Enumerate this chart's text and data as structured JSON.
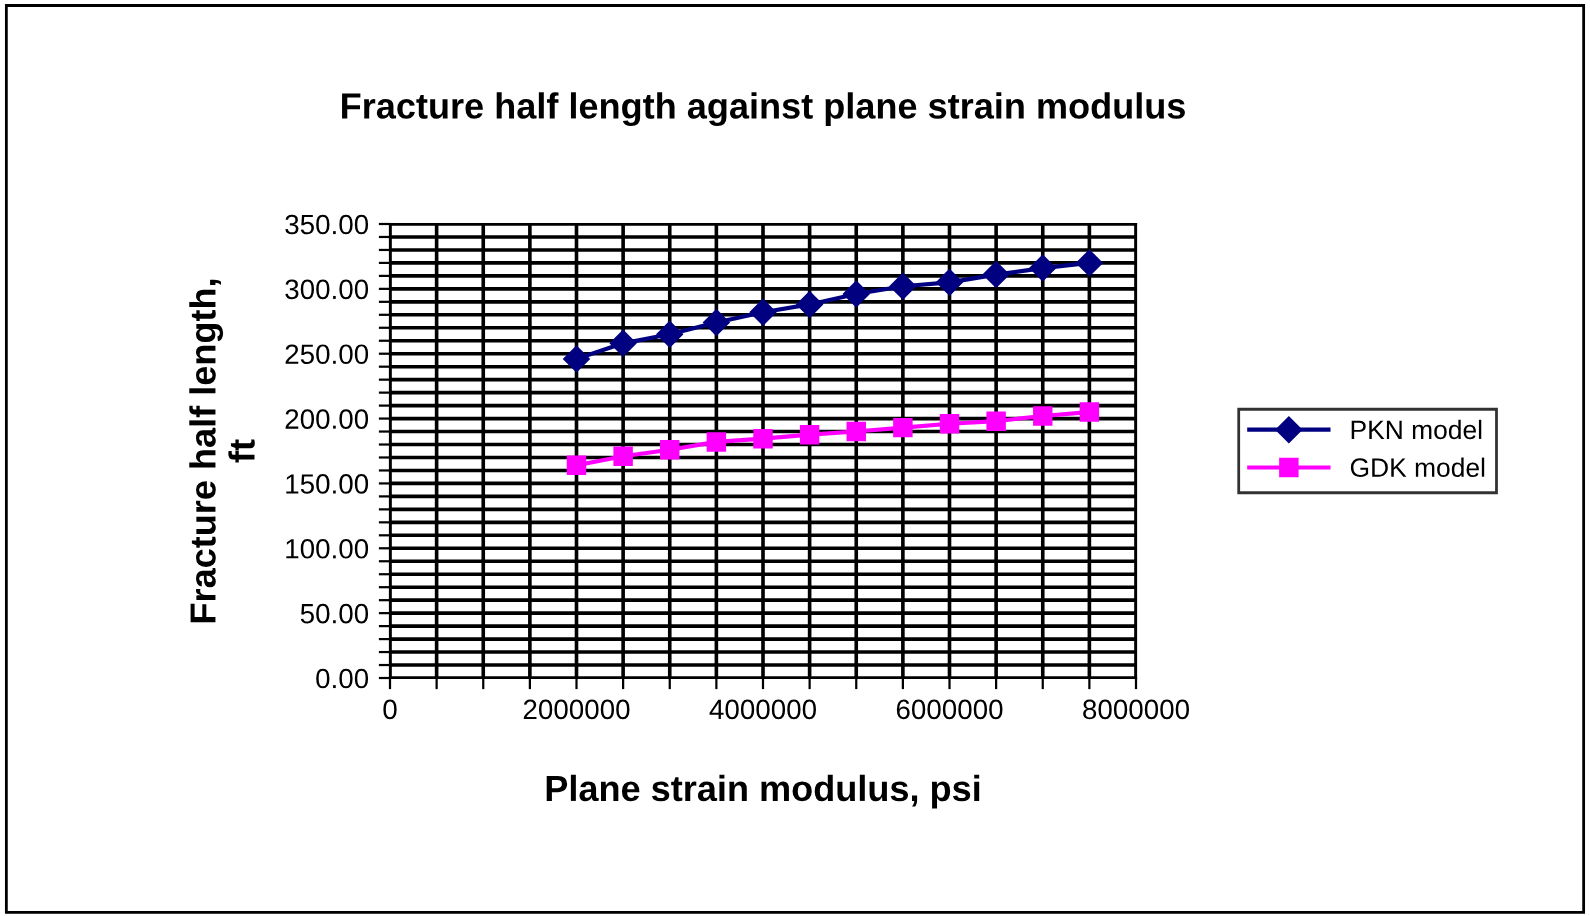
{
  "chart_data": {
    "type": "line",
    "title": "Fracture half length against plane strain modulus",
    "xlabel": "Plane strain modulus, psi",
    "ylabel": "Fracture half length,\nft",
    "x": [
      2000000,
      2500000,
      3000000,
      3500000,
      4000000,
      4500000,
      5000000,
      5500000,
      6000000,
      6500000,
      7000000,
      7500000
    ],
    "series": [
      {
        "name": "PKN model",
        "color": "#000080",
        "marker": "diamond",
        "values": [
          246,
          258,
          265,
          274,
          282,
          288,
          296,
          302,
          305,
          311,
          316,
          320
        ]
      },
      {
        "name": "GDK model",
        "color": "#ff00ff",
        "marker": "square",
        "values": [
          164,
          171,
          176,
          182,
          184.5,
          187.6,
          190,
          193,
          196,
          198,
          202,
          205
        ]
      }
    ],
    "xlim": [
      0,
      8000000
    ],
    "ylim": [
      0,
      350
    ],
    "xticks": [
      0,
      {
        "value": 500000,
        "label": null
      },
      {
        "value": 1000000,
        "label": null
      },
      {
        "value": 1500000,
        "label": null
      },
      2000000,
      {
        "value": 2500000,
        "label": null
      },
      {
        "value": 3000000,
        "label": null
      },
      {
        "value": 3500000,
        "label": null
      },
      4000000,
      {
        "value": 4500000,
        "label": null
      },
      {
        "value": 5000000,
        "label": null
      },
      {
        "value": 5500000,
        "label": null
      },
      6000000,
      {
        "value": 6500000,
        "label": null
      },
      {
        "value": 7000000,
        "label": null
      },
      {
        "value": 7500000,
        "label": null
      },
      8000000
    ],
    "yticks": [
      {
        "value": 0,
        "label": "0.00"
      },
      {
        "value": 10,
        "label": null
      },
      {
        "value": 20,
        "label": null
      },
      {
        "value": 30,
        "label": null
      },
      {
        "value": 40,
        "label": null
      },
      {
        "value": 50,
        "label": "50.00"
      },
      {
        "value": 60,
        "label": null
      },
      {
        "value": 70,
        "label": null
      },
      {
        "value": 80,
        "label": null
      },
      {
        "value": 90,
        "label": null
      },
      {
        "value": 100,
        "label": "100.00"
      },
      {
        "value": 110,
        "label": null
      },
      {
        "value": 120,
        "label": null
      },
      {
        "value": 130,
        "label": null
      },
      {
        "value": 140,
        "label": null
      },
      {
        "value": 150,
        "label": "150.00"
      },
      {
        "value": 160,
        "label": null
      },
      {
        "value": 170,
        "label": null
      },
      {
        "value": 180,
        "label": null
      },
      {
        "value": 190,
        "label": null
      },
      {
        "value": 200,
        "label": "200.00"
      },
      {
        "value": 210,
        "label": null
      },
      {
        "value": 220,
        "label": null
      },
      {
        "value": 230,
        "label": null
      },
      {
        "value": 240,
        "label": null
      },
      {
        "value": 250,
        "label": "250.00"
      },
      {
        "value": 260,
        "label": null
      },
      {
        "value": 270,
        "label": null
      },
      {
        "value": 280,
        "label": null
      },
      {
        "value": 290,
        "label": null
      },
      {
        "value": 300,
        "label": "300.00"
      },
      {
        "value": 310,
        "label": null
      },
      {
        "value": 320,
        "label": null
      },
      {
        "value": 330,
        "label": null
      },
      {
        "value": 340,
        "label": null
      },
      {
        "value": 350,
        "label": "350.00"
      }
    ],
    "grid": true,
    "legend": "right",
    "line_style": "solid"
  }
}
